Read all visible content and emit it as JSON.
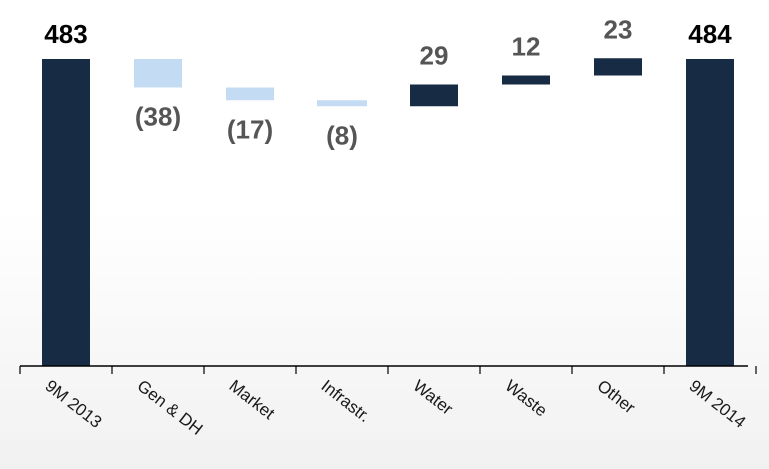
{
  "chart_data": {
    "type": "bar",
    "subtype": "waterfall",
    "title": "",
    "xlabel": "",
    "ylabel": "",
    "grid": false,
    "legend": "none",
    "categories": [
      "9M 2013",
      "Gen & DH",
      "Market",
      "Infrastr.",
      "Water",
      "Waste",
      "Other",
      "9M 2014"
    ],
    "values": [
      483,
      -38,
      -17,
      -8,
      29,
      12,
      23,
      484
    ],
    "value_labels": [
      "483",
      "(38)",
      "(17)",
      "(8)",
      "29",
      "12",
      "23",
      "484"
    ],
    "bar_kinds": [
      "total",
      "delta",
      "delta",
      "delta",
      "delta",
      "delta",
      "delta",
      "total"
    ],
    "colors": {
      "total": "#172b45",
      "increase": "#172b45",
      "decrease": "#c4dcf3",
      "total_label": "#000000",
      "delta_label": "#555555",
      "axis": "#000000"
    }
  }
}
